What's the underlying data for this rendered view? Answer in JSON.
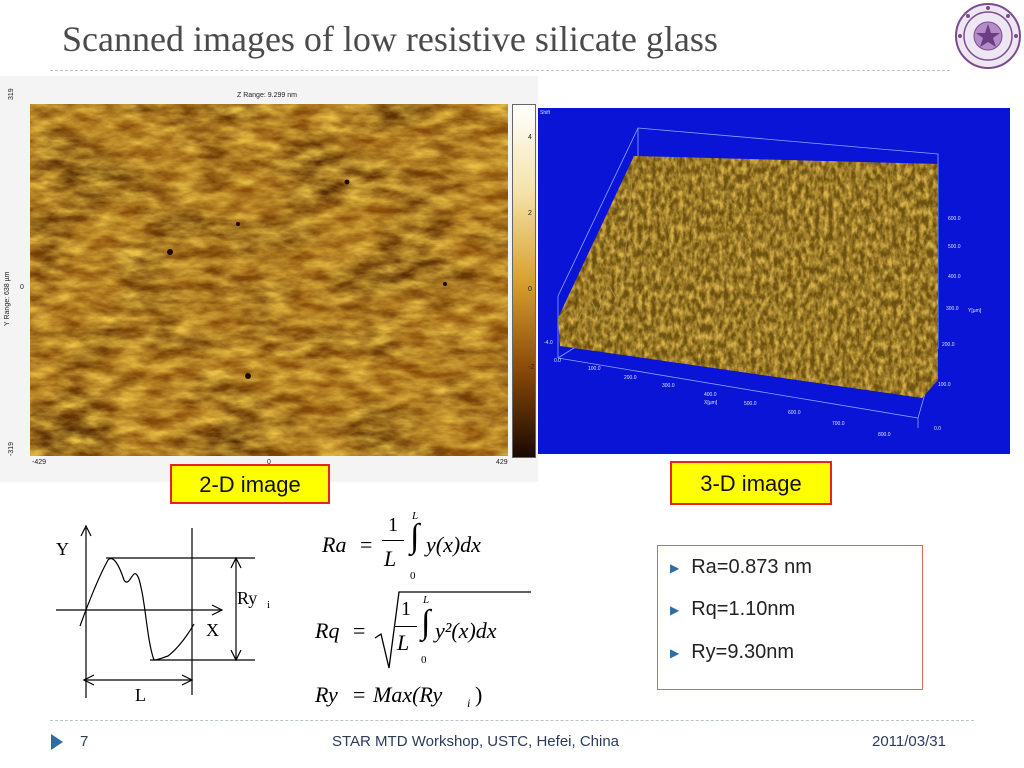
{
  "slide": {
    "title": "Scanned images of low resistive silicate glass",
    "label_2d": "2-D image",
    "label_3d": "3-D image"
  },
  "afm_2d": {
    "z_range": "Z Range:  9.299 nm",
    "y_axis_label": "Y Range:  638 µm",
    "y_ticks": [
      "319",
      "0",
      "-319"
    ],
    "x_ticks": [
      "-429",
      "0",
      "429"
    ],
    "colorbar_ticks": [
      "4",
      "2",
      "0",
      "-2",
      "-4"
    ]
  },
  "afm_3d": {
    "corner_label": "Shift",
    "x_ticks": [
      "0.0",
      "100.0",
      "200.0",
      "300.0",
      "400.0",
      "500.0",
      "600.0",
      "700.0",
      "800.0"
    ],
    "x_unit": "X[µm]",
    "y_ticks": [
      "0.0",
      "100.0",
      "200.0",
      "300.0",
      "400.0",
      "500.0",
      "600.0"
    ],
    "y_unit": "Y[µm]",
    "z_tick": "-4.0",
    "colors": {
      "background": "#0a14d6",
      "surface": "#8a6a12"
    }
  },
  "diagram": {
    "y_label": "Y",
    "x_label": "X",
    "ry_label": "Ry",
    "ry_sub": "i",
    "l_label": "L"
  },
  "formulas": {
    "ra": {
      "lhs": "Ra",
      "num": "1",
      "den": "L",
      "upper": "L",
      "lower": "0",
      "body": "y(x)dx"
    },
    "rq": {
      "lhs": "Rq",
      "num": "1",
      "den": "L",
      "upper": "L",
      "lower": "0",
      "body": "y²(x)dx"
    },
    "ry": {
      "lhs": "Ry",
      "rhs": "Max(Ry",
      "sub": "i",
      "close": ")"
    }
  },
  "results": [
    "Ra=0.873 nm",
    "Rq=1.10nm",
    "Ry=9.30nm"
  ],
  "footer": {
    "page": "7",
    "center": "STAR MTD Workshop, USTC, Hefei, China",
    "date": "2011/03/31"
  },
  "colors": {
    "accent": "#2e6da4",
    "box_border": "#e8231f",
    "label_bg": "#ffff00"
  }
}
